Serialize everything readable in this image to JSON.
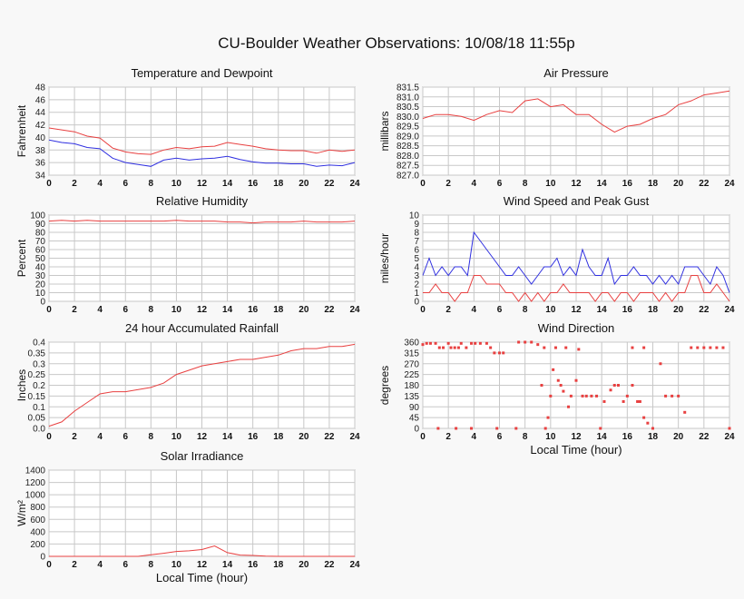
{
  "title": "CU-Boulder Weather Observations: 10/08/18 11:55p",
  "colors": {
    "red": "#e84040",
    "blue": "#3030e0",
    "grid": "#c8c8c8",
    "plot_bg": "#ffffff"
  },
  "chart_data": [
    {
      "type": "line",
      "title": "Temperature and Dewpoint",
      "ylabel": "Fahrenheit",
      "xlabel": "",
      "xlim": [
        0,
        24
      ],
      "ylim": [
        34,
        48
      ],
      "xticks": [
        "0",
        "2",
        "4",
        "6",
        "8",
        "10",
        "12",
        "14",
        "16",
        "18",
        "20",
        "22",
        "24"
      ],
      "yticks": [
        "34",
        "36",
        "38",
        "40",
        "42",
        "44",
        "46",
        "48"
      ],
      "grid": true,
      "series": [
        {
          "color": "#e84040",
          "x_step": 1,
          "values": [
            41.5,
            41.2,
            40.9,
            40.2,
            39.9,
            38.3,
            37.7,
            37.4,
            37.3,
            38.0,
            38.4,
            38.2,
            38.5,
            38.6,
            39.2,
            38.9,
            38.6,
            38.2,
            38.0,
            37.9,
            37.9,
            37.5,
            38.0,
            37.8,
            38.0
          ]
        },
        {
          "color": "#3030e0",
          "x_step": 1,
          "values": [
            39.6,
            39.2,
            39.0,
            38.4,
            38.2,
            36.7,
            36.0,
            35.7,
            35.4,
            36.4,
            36.7,
            36.4,
            36.6,
            36.7,
            37.0,
            36.5,
            36.1,
            35.9,
            35.9,
            35.8,
            35.8,
            35.4,
            35.6,
            35.5,
            36.0
          ]
        }
      ]
    },
    {
      "type": "line",
      "title": "Air Pressure",
      "ylabel": "millibars",
      "xlabel": "",
      "xlim": [
        0,
        24
      ],
      "ylim": [
        827.0,
        831.5
      ],
      "xticks": [
        "0",
        "2",
        "4",
        "6",
        "8",
        "10",
        "12",
        "14",
        "16",
        "18",
        "20",
        "22",
        "24"
      ],
      "yticks": [
        "827.0",
        "827.5",
        "828.0",
        "828.5",
        "829.0",
        "829.5",
        "830.0",
        "830.5",
        "831.0",
        "831.5"
      ],
      "grid": true,
      "series": [
        {
          "color": "#e84040",
          "x_step": 1,
          "values": [
            829.9,
            830.1,
            830.1,
            830.0,
            829.8,
            830.1,
            830.3,
            830.2,
            830.8,
            830.9,
            830.5,
            830.6,
            830.1,
            830.1,
            829.6,
            829.2,
            829.5,
            829.6,
            829.9,
            830.1,
            830.6,
            830.8,
            831.1,
            831.2,
            831.3
          ]
        }
      ]
    },
    {
      "type": "line",
      "title": "Relative Humidity",
      "ylabel": "Percent",
      "xlabel": "",
      "xlim": [
        0,
        24
      ],
      "ylim": [
        0,
        100
      ],
      "xticks": [
        "0",
        "2",
        "4",
        "6",
        "8",
        "10",
        "12",
        "14",
        "16",
        "18",
        "20",
        "22",
        "24"
      ],
      "yticks": [
        "0",
        "10",
        "20",
        "30",
        "40",
        "50",
        "60",
        "70",
        "80",
        "90",
        "100"
      ],
      "grid": true,
      "series": [
        {
          "color": "#e84040",
          "x_step": 1,
          "values": [
            93,
            94,
            93,
            94,
            93,
            93,
            93,
            93,
            93,
            93,
            94,
            93,
            93,
            93,
            92,
            92,
            91,
            92,
            92,
            92,
            93,
            92,
            92,
            92,
            93
          ]
        }
      ]
    },
    {
      "type": "line",
      "title": "Wind Speed and Peak Gust",
      "ylabel": "miles/hour",
      "xlabel": "",
      "xlim": [
        0,
        24
      ],
      "ylim": [
        0,
        10
      ],
      "xticks": [
        "0",
        "2",
        "4",
        "6",
        "8",
        "10",
        "12",
        "14",
        "16",
        "18",
        "20",
        "22",
        "24"
      ],
      "yticks": [
        "0",
        "1",
        "2",
        "3",
        "4",
        "5",
        "6",
        "7",
        "8",
        "9",
        "10"
      ],
      "grid": true,
      "series": [
        {
          "color": "#3030e0",
          "x_step": 0.5,
          "values": [
            3,
            5,
            3,
            4,
            3,
            4,
            4,
            3,
            8,
            7,
            6,
            5,
            4,
            3,
            3,
            4,
            3,
            2,
            3,
            4,
            4,
            5,
            3,
            4,
            3,
            6,
            4,
            3,
            3,
            5,
            2,
            3,
            3,
            4,
            3,
            3,
            2,
            3,
            2,
            3,
            2,
            4,
            4,
            4,
            3,
            2,
            4,
            3,
            1
          ]
        },
        {
          "color": "#e84040",
          "x_step": 0.5,
          "values": [
            1,
            1,
            2,
            1,
            1,
            0,
            1,
            1,
            3,
            3,
            2,
            2,
            2,
            1,
            1,
            0,
            1,
            0,
            1,
            0,
            1,
            1,
            2,
            1,
            1,
            1,
            1,
            0,
            1,
            1,
            0,
            1,
            1,
            0,
            1,
            1,
            1,
            0,
            1,
            0,
            1,
            1,
            3,
            3,
            1,
            1,
            2,
            1,
            0
          ]
        }
      ]
    },
    {
      "type": "line",
      "title": "24 hour Accumulated Rainfall",
      "ylabel": "Inches",
      "xlabel": "",
      "xlim": [
        0,
        24
      ],
      "ylim": [
        0,
        0.4
      ],
      "xticks": [
        "0",
        "2",
        "4",
        "6",
        "8",
        "10",
        "12",
        "14",
        "16",
        "18",
        "20",
        "22",
        "24"
      ],
      "yticks": [
        "0.0",
        "0.05",
        "0.1",
        "0.15",
        "0.2",
        "0.25",
        "0.3",
        "0.35",
        "0.4"
      ],
      "grid": true,
      "series": [
        {
          "color": "#e84040",
          "x_step": 1,
          "values": [
            0.01,
            0.03,
            0.08,
            0.12,
            0.16,
            0.17,
            0.17,
            0.18,
            0.19,
            0.21,
            0.25,
            0.27,
            0.29,
            0.3,
            0.31,
            0.32,
            0.32,
            0.33,
            0.34,
            0.36,
            0.37,
            0.37,
            0.38,
            0.38,
            0.39
          ]
        }
      ]
    },
    {
      "type": "scatter",
      "title": "Wind Direction",
      "ylabel": "degrees",
      "xlabel": "Local Time (hour)",
      "xlim": [
        0,
        24
      ],
      "ylim": [
        0,
        360
      ],
      "xticks": [
        "0",
        "2",
        "4",
        "6",
        "8",
        "10",
        "12",
        "14",
        "16",
        "18",
        "20",
        "22",
        "24"
      ],
      "yticks": [
        "0",
        "45",
        "90",
        "135",
        "180",
        "225",
        "270",
        "315",
        "360"
      ],
      "grid": true,
      "series": [
        {
          "color": "#e84040",
          "points": [
            [
              0,
              350
            ],
            [
              0.3,
              355
            ],
            [
              0.6,
              355
            ],
            [
              1,
              355
            ],
            [
              1.3,
              337
            ],
            [
              1.6,
              337
            ],
            [
              2,
              355
            ],
            [
              2.2,
              337
            ],
            [
              2.5,
              337
            ],
            [
              2.8,
              337
            ],
            [
              3,
              355
            ],
            [
              3.4,
              337
            ],
            [
              3.8,
              355
            ],
            [
              4.1,
              355
            ],
            [
              4.5,
              355
            ],
            [
              5,
              355
            ],
            [
              5.3,
              337
            ],
            [
              5.6,
              315
            ],
            [
              6,
              315
            ],
            [
              6.3,
              315
            ],
            [
              7.5,
              360
            ],
            [
              8,
              360
            ],
            [
              8.5,
              360
            ],
            [
              9,
              350
            ],
            [
              9.5,
              337
            ],
            [
              1.2,
              0
            ],
            [
              2.6,
              0
            ],
            [
              3.8,
              0
            ],
            [
              5.8,
              0
            ],
            [
              7.3,
              0
            ],
            [
              9.3,
              180
            ],
            [
              9.6,
              0
            ],
            [
              9.8,
              45
            ],
            [
              10,
              135
            ],
            [
              10.2,
              245
            ],
            [
              10.4,
              337
            ],
            [
              10.6,
              200
            ],
            [
              10.8,
              180
            ],
            [
              11,
              155
            ],
            [
              11.2,
              337
            ],
            [
              11.4,
              90
            ],
            [
              11.6,
              135
            ],
            [
              12,
              200
            ],
            [
              12.2,
              330
            ],
            [
              12.5,
              135
            ],
            [
              12.8,
              135
            ],
            [
              13.2,
              135
            ],
            [
              13.6,
              135
            ],
            [
              13.9,
              0
            ],
            [
              14.2,
              112
            ],
            [
              14.7,
              160
            ],
            [
              15,
              180
            ],
            [
              15.3,
              180
            ],
            [
              15.7,
              112
            ],
            [
              16,
              135
            ],
            [
              16.4,
              180
            ],
            [
              16.8,
              112
            ],
            [
              17,
              112
            ],
            [
              17.3,
              45
            ],
            [
              17.6,
              22
            ],
            [
              16.4,
              337
            ],
            [
              17.3,
              337
            ],
            [
              18,
              0
            ],
            [
              18.6,
              270
            ],
            [
              19,
              135
            ],
            [
              19.5,
              135
            ],
            [
              20,
              135
            ],
            [
              20.5,
              67
            ],
            [
              21,
              337
            ],
            [
              21.5,
              337
            ],
            [
              22,
              337
            ],
            [
              22.5,
              337
            ],
            [
              23,
              337
            ],
            [
              23.5,
              337
            ],
            [
              24,
              0
            ]
          ]
        }
      ]
    },
    {
      "type": "area",
      "title": "Solar Irradiance",
      "ylabel": "W/m²",
      "xlabel": "Local Time (hour)",
      "xlim": [
        0,
        24
      ],
      "ylim": [
        0,
        1400
      ],
      "xticks": [
        "0",
        "2",
        "4",
        "6",
        "8",
        "10",
        "12",
        "14",
        "16",
        "18",
        "20",
        "22",
        "24"
      ],
      "yticks": [
        "0",
        "200",
        "400",
        "600",
        "800",
        "1000",
        "1200",
        "1400"
      ],
      "grid": true,
      "series": [
        {
          "color": "#e84040",
          "x_step": 1,
          "values": [
            0,
            0,
            0,
            0,
            0,
            0,
            0,
            0,
            25,
            50,
            80,
            90,
            110,
            170,
            60,
            20,
            15,
            5,
            0,
            0,
            0,
            0,
            0,
            0,
            0
          ]
        }
      ]
    }
  ]
}
